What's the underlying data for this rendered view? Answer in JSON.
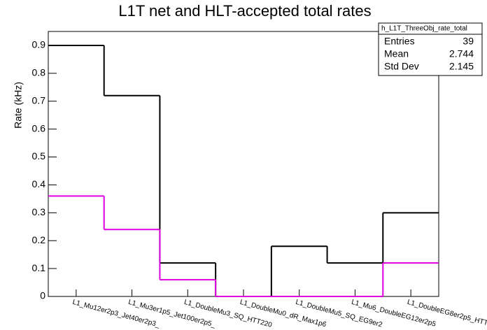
{
  "chart_data": {
    "type": "step",
    "title": "L1T net and HLT-accepted total rates",
    "y_label": "Rate (kHz)",
    "categories": [
      "L1_Mu12er2p3_Jet40er2p3_",
      "L1_Mu3er1p5_Jet100er2p5_",
      "L1_DoubleMu3_SQ_HTT220",
      "L1_DoubleMu0_dR_Max1p6",
      "L1_DoubleMu5_SQ_EG9er2",
      "L1_Mu6_DoubleEG12er2p5",
      "L1_DoubleEG8er2p5_HTT"
    ],
    "series": [
      {
        "color": "#000000",
        "values": [
          0.9,
          0.72,
          0.12,
          0,
          0.18,
          0.12,
          0.3
        ]
      },
      {
        "color": "#e000e0",
        "values": [
          0.36,
          0.24,
          0.06,
          0,
          0,
          0,
          0.12
        ]
      }
    ],
    "ylim": [
      0,
      0.95
    ],
    "yticks": [
      0,
      0.1,
      0.2,
      0.3,
      0.4,
      0.5,
      0.6,
      0.7,
      0.8,
      0.9
    ],
    "stats": {
      "title": "h_L1T_ThreeObj_rate_total",
      "rows": [
        {
          "label": "Entries",
          "value": 39
        },
        {
          "label": "Mean",
          "value": 2.744
        },
        {
          "label": "Std Dev",
          "value": 2.145
        }
      ]
    }
  }
}
